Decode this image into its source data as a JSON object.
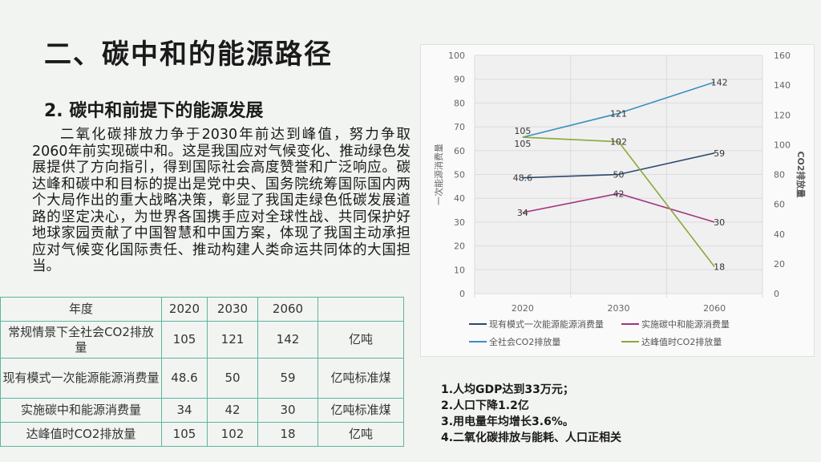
{
  "slide": {
    "title": "二、碳中和的能源路径",
    "subtitle": "2. 碳中和前提下的能源发展",
    "paragraph": "二氧化碳排放力争于2030年前达到峰值，努力争取2060年前实现碳中和。这是我国应对气候变化、推动绿色发展提供了方向指引，得到国际社会高度赞誉和广泛响应。碳达峰和碳中和目标的提出是党中央、国务院统筹国际国内两个大局作出的重大战略决策，彰显了我国走绿色低碳发展道路的坚定决心，为世界各国携手应对全球性战、共同保护好地球家园贡献了中国智慧和中国方案，体现了我国主动承担应对气候变化国际责任、推动构建人类命运共同体的大国担当。"
  },
  "table": {
    "header": [
      "年度",
      "2020",
      "2030",
      "2060",
      ""
    ],
    "rows": [
      [
        "常规情景下全社会CO2排放量",
        "105",
        "121",
        "142",
        "亿吨"
      ],
      [
        "现有模式一次能源能源消费量",
        "48.6",
        "50",
        "59",
        "亿吨标准煤"
      ],
      [
        "实施碳中和能源消费量",
        "34",
        "42",
        "30",
        "亿吨标准煤"
      ],
      [
        "达峰值时CO2排放量",
        "105",
        "102",
        "18",
        "亿吨"
      ]
    ]
  },
  "notes": [
    "1.人均GDP达到33万元；",
    "2.人口下降1.2亿",
    "3.用电量年均增长3.6%。",
    "4.二氧化碳排放与能耗、人口正相关"
  ],
  "chart_data": {
    "type": "line",
    "categories": [
      "2020",
      "2030",
      "2060"
    ],
    "ylabel": "一次能源消费量",
    "y2label": "CO2排放量",
    "ylim": [
      0,
      100
    ],
    "y2lim": [
      0,
      160
    ],
    "yticks": [
      "0",
      "10",
      "20",
      "30",
      "40",
      "50",
      "60",
      "70",
      "80",
      "90",
      "100"
    ],
    "y2ticks": [
      "0",
      "20",
      "40",
      "60",
      "80",
      "100",
      "120",
      "140",
      "160"
    ],
    "grid": true,
    "legend_position": "bottom",
    "series": [
      {
        "name": "现有模式一次能源能源消费量",
        "axis": "left",
        "color": "#2a4a6b",
        "values": [
          48.6,
          50,
          59
        ],
        "labels": [
          "48.6",
          "50",
          "59"
        ]
      },
      {
        "name": "实施碳中和能源消费量",
        "axis": "left",
        "color": "#a0357f",
        "values": [
          34,
          42,
          30
        ],
        "labels": [
          "34",
          "42",
          "30"
        ]
      },
      {
        "name": "全社会CO2排放量",
        "axis": "right",
        "color": "#3a8fc0",
        "values": [
          105,
          121,
          142
        ],
        "labels": [
          "105",
          "121",
          "142"
        ]
      },
      {
        "name": "达峰值时CO2排放量",
        "axis": "right",
        "color": "#8aa83a",
        "values": [
          105,
          102,
          18
        ],
        "labels": [
          "105",
          "102",
          "18"
        ]
      }
    ]
  }
}
